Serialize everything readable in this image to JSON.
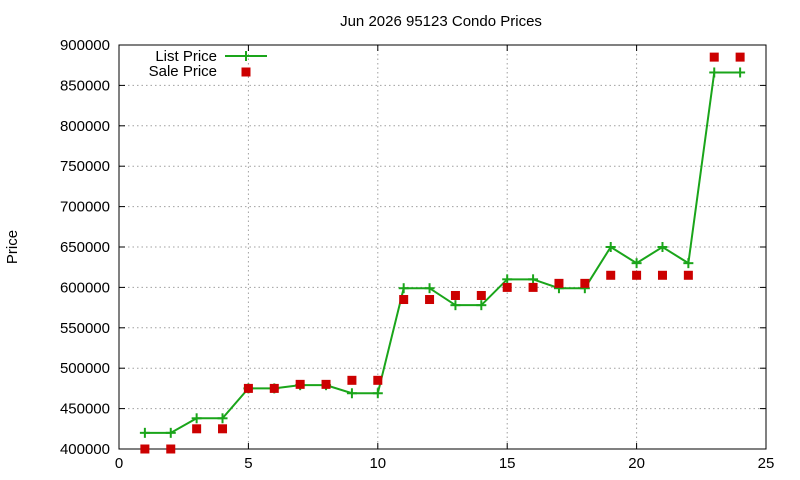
{
  "chart_data": {
    "type": "line",
    "title": "Jun 2026 95123 Condo Prices",
    "xlabel": "",
    "ylabel": "Price",
    "xlim": [
      0,
      25
    ],
    "ylim": [
      400000,
      900000
    ],
    "xticks": [
      0,
      5,
      10,
      15,
      20,
      25
    ],
    "yticks": [
      400000,
      450000,
      500000,
      550000,
      600000,
      650000,
      700000,
      750000,
      800000,
      850000,
      900000
    ],
    "grid": true,
    "legend_position": "top-left",
    "series": [
      {
        "name": "List Price",
        "style": "line+cross",
        "color": "#1aa51a",
        "x": [
          1,
          2,
          3,
          4,
          5,
          6,
          7,
          8,
          9,
          10,
          11,
          12,
          13,
          14,
          15,
          16,
          17,
          18,
          19,
          20,
          21,
          22,
          23,
          24
        ],
        "values": [
          420000,
          420000,
          438000,
          438000,
          475000,
          475000,
          479000,
          479000,
          469000,
          469000,
          599000,
          599000,
          578000,
          578000,
          610000,
          610000,
          599000,
          599000,
          650000,
          630000,
          650000,
          630000,
          866000,
          866000
        ]
      },
      {
        "name": "Sale Price",
        "style": "square",
        "color": "#cc0000",
        "x": [
          1,
          2,
          3,
          4,
          5,
          6,
          7,
          8,
          9,
          10,
          11,
          12,
          13,
          14,
          15,
          16,
          17,
          18,
          19,
          20,
          21,
          22,
          23,
          24
        ],
        "values": [
          400000,
          400000,
          425000,
          425000,
          475000,
          475000,
          480000,
          480000,
          485000,
          485000,
          585000,
          585000,
          590000,
          590000,
          600000,
          600000,
          605000,
          605000,
          615000,
          615000,
          615000,
          615000,
          885000,
          885000
        ]
      }
    ]
  }
}
